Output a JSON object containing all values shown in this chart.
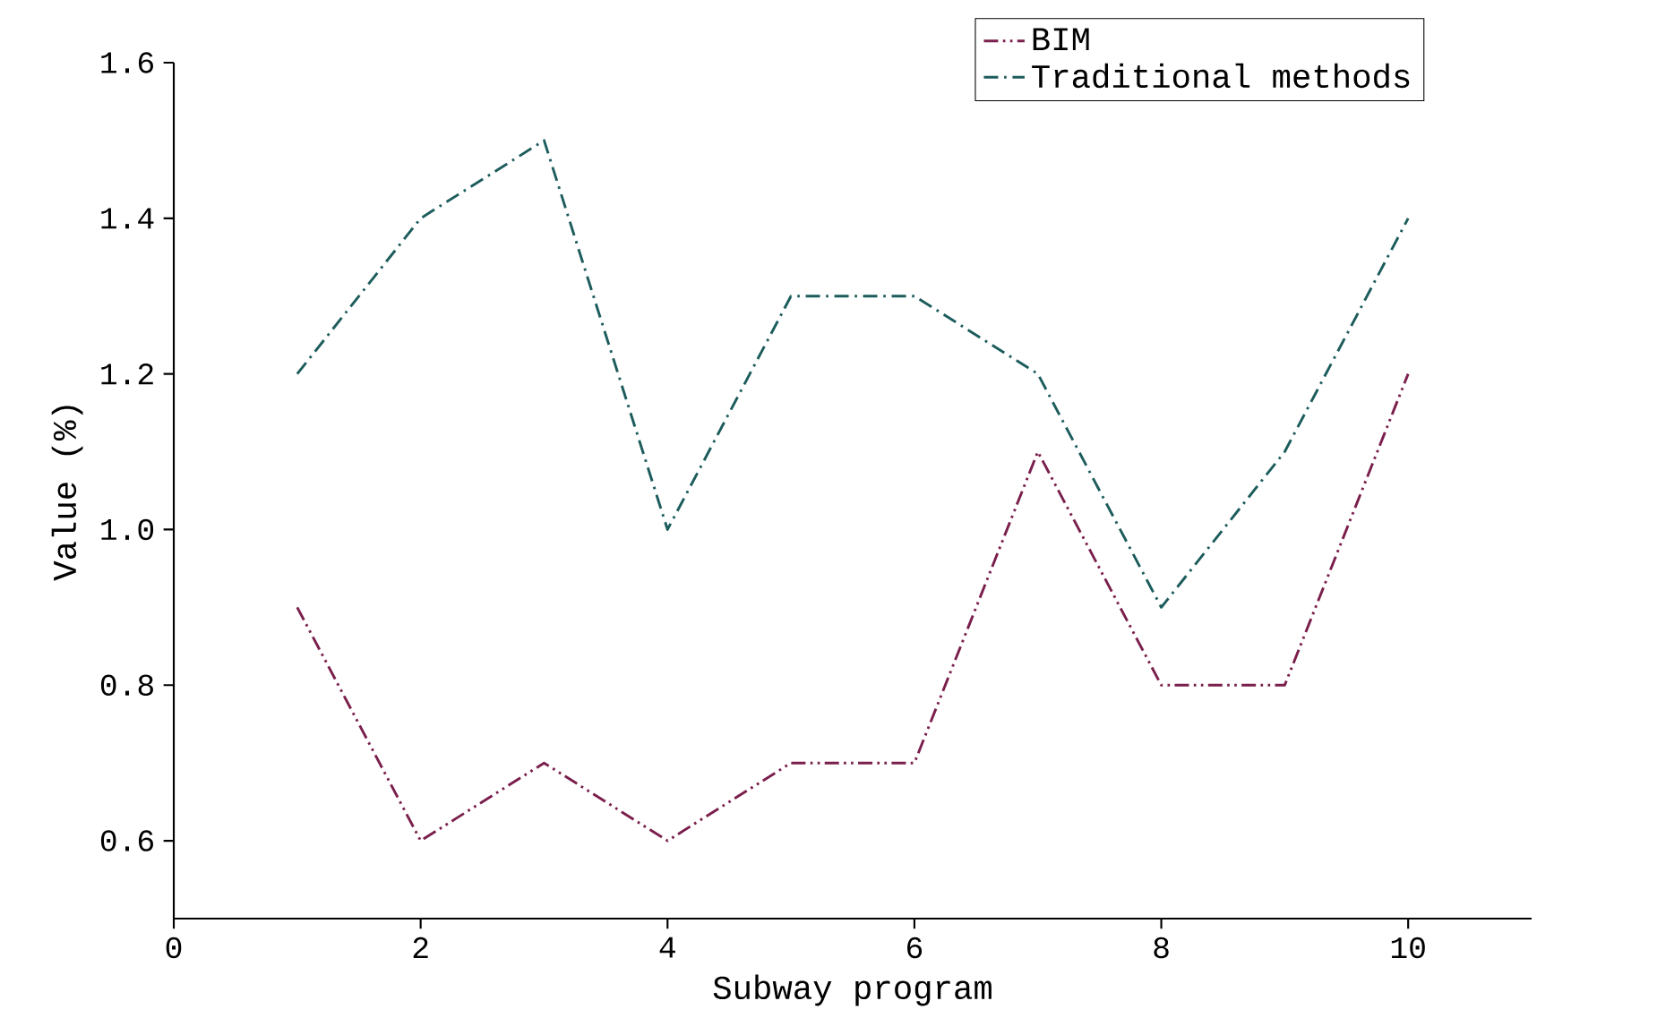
{
  "chart_data": {
    "type": "line",
    "xlabel": "Subway program",
    "ylabel": "Value (%)",
    "x": [
      1,
      2,
      3,
      4,
      5,
      6,
      7,
      8,
      9,
      10
    ],
    "series": [
      {
        "name": "BIM",
        "color": "#7a1f4c",
        "line_style": "dash dot dot",
        "values": [
          0.9,
          0.6,
          0.7,
          0.6,
          0.7,
          0.7,
          1.1,
          0.8,
          0.8,
          1.2
        ]
      },
      {
        "name": "Traditional methods",
        "color": "#1d5c5c",
        "line_style": "dash dot",
        "values": [
          1.2,
          1.4,
          1.5,
          1.0,
          1.3,
          1.3,
          1.2,
          0.9,
          1.1,
          1.4
        ]
      }
    ],
    "xlim": [
      0,
      11
    ],
    "xticks": [
      0,
      2,
      4,
      6,
      8,
      10
    ],
    "ylim": [
      0.5,
      1.6
    ],
    "yticks": [
      0.6,
      0.8,
      {
        "value": 1.0,
        "label": "1.0"
      },
      1.2,
      1.4,
      1.6
    ],
    "grid": false,
    "legend": "top right",
    "marker": "none"
  }
}
